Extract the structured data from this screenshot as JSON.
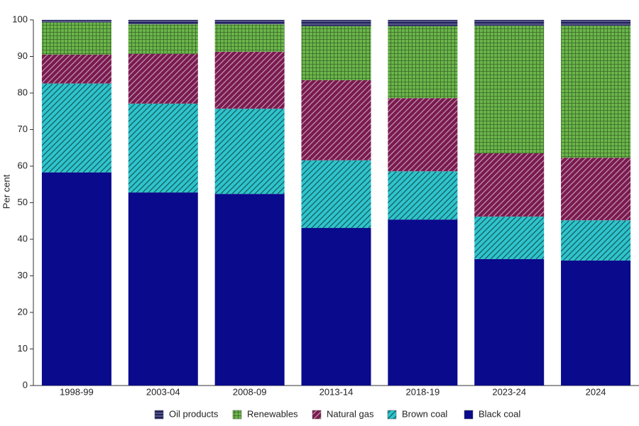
{
  "chart_data": {
    "type": "stacked_bar",
    "y_label": "Per cent",
    "categories": [
      "1998-99",
      "2003-04",
      "2008-09",
      "2013-14",
      "2018-19",
      "2023-24",
      "2024"
    ],
    "series": [
      {
        "name": "Black coal",
        "color": "#0a0a8c",
        "pattern": "solid",
        "values": [
          58.3,
          52.8,
          52.4,
          43.1,
          45.4,
          34.6,
          34.2
        ]
      },
      {
        "name": "Brown coal",
        "color": "#2ec4cc",
        "pattern": "diagonal",
        "values": [
          24.3,
          24.3,
          23.3,
          18.5,
          13.2,
          11.6,
          11.0
        ]
      },
      {
        "name": "Natural gas",
        "color": "#7a1a50",
        "pattern": "diagonal",
        "values": [
          7.9,
          13.6,
          15.6,
          21.9,
          20.0,
          17.3,
          17.1
        ]
      },
      {
        "name": "Renewables",
        "color": "#6ab64a",
        "pattern": "grid",
        "values": [
          8.8,
          8.1,
          7.5,
          14.8,
          19.7,
          34.9,
          36.1
        ]
      },
      {
        "name": "Oil products",
        "color": "#20205e",
        "pattern": "horizontal",
        "values": [
          0.7,
          1.2,
          1.2,
          1.7,
          1.7,
          1.6,
          1.6
        ]
      }
    ],
    "ylim": [
      0,
      100
    ],
    "yticks": [
      0,
      10,
      20,
      30,
      40,
      50,
      60,
      70,
      80,
      90,
      100
    ],
    "grid": false,
    "legend": "bottom"
  }
}
